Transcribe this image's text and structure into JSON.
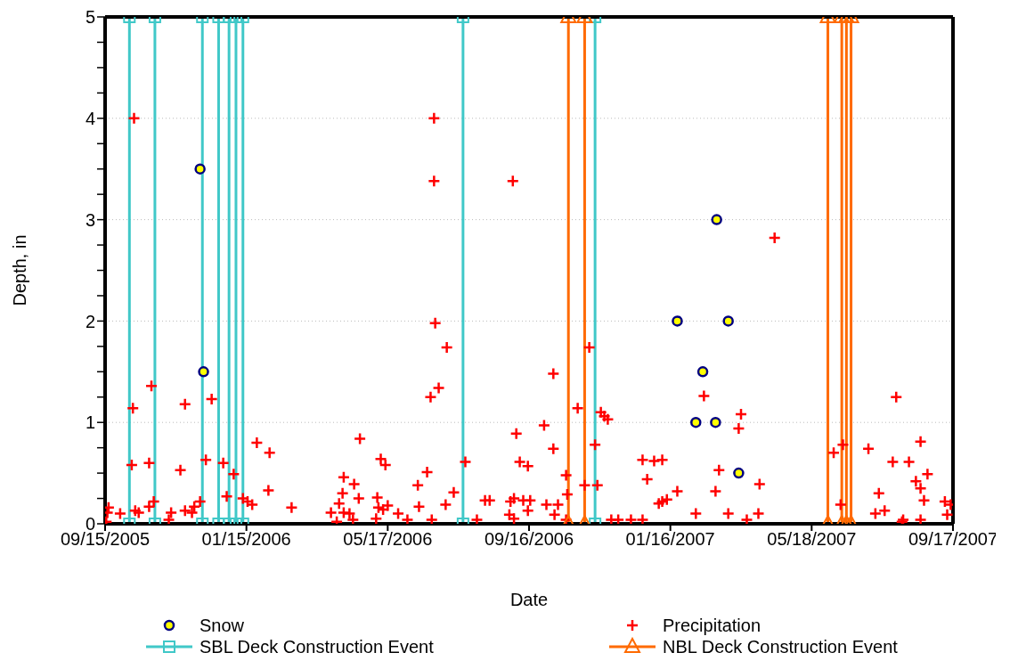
{
  "chart_data": {
    "type": "scatter",
    "xlabel": "Date",
    "ylabel": "Depth, in",
    "xlim": [
      "2005-09-15",
      "2007-09-17"
    ],
    "xticks": [
      {
        "value": "2005-09-15",
        "label": "09/15/2005"
      },
      {
        "value": "2006-01-15",
        "label": "01/15/2006"
      },
      {
        "value": "2006-05-17",
        "label": "05/17/2006"
      },
      {
        "value": "2006-09-16",
        "label": "09/16/2006"
      },
      {
        "value": "2007-01-16",
        "label": "01/16/2007"
      },
      {
        "value": "2007-05-18",
        "label": "05/18/2007"
      },
      {
        "value": "2007-09-17",
        "label": "09/17/2007"
      }
    ],
    "ylim": [
      0,
      5
    ],
    "yticks": [
      0,
      {
        "value": 0.25,
        "label": null
      },
      {
        "value": 0.5,
        "label": null
      },
      {
        "value": 0.75,
        "label": null
      },
      1,
      {
        "value": 1.25,
        "label": null
      },
      {
        "value": 1.5,
        "label": null
      },
      {
        "value": 1.75,
        "label": null
      },
      2,
      {
        "value": 2.25,
        "label": null
      },
      {
        "value": 2.5,
        "label": null
      },
      {
        "value": 2.75,
        "label": null
      },
      3,
      {
        "value": 3.25,
        "label": null
      },
      {
        "value": 3.5,
        "label": null
      },
      {
        "value": 3.75,
        "label": null
      },
      4,
      {
        "value": 4.25,
        "label": null
      },
      {
        "value": 4.5,
        "label": null
      },
      {
        "value": 4.75,
        "label": null
      },
      5
    ],
    "grid": "y",
    "legend": "bottom",
    "series": [
      {
        "name": "Snow",
        "marker": "circle",
        "color": "#ffff00",
        "x": [
          "2005-12-06",
          "2005-12-09",
          "2007-01-22",
          "2007-02-07",
          "2007-02-13",
          "2007-02-24",
          "2007-02-25",
          "2007-03-07",
          "2007-03-16"
        ],
        "values": [
          3.5,
          1.5,
          2.0,
          1.0,
          1.5,
          1.0,
          3.0,
          2.0,
          0.5
        ]
      },
      {
        "name": "Precipitation",
        "marker": "cross",
        "color": "#ff0000",
        "x": [
          "2005-09-16",
          "2005-09-17",
          "2005-09-18",
          "2005-09-28",
          "2005-10-08",
          "2005-10-09",
          "2005-10-10",
          "2005-10-11",
          "2005-10-14",
          "2005-10-23",
          "2005-10-23",
          "2005-10-25",
          "2005-10-27",
          "2005-11-09",
          "2005-11-11",
          "2005-11-19",
          "2005-11-23",
          "2005-11-23",
          "2005-11-29",
          "2005-12-01",
          "2005-12-06",
          "2005-12-11",
          "2005-12-16",
          "2005-12-26",
          "2005-12-29",
          "2006-01-04",
          "2006-01-12",
          "2006-01-16",
          "2006-01-20",
          "2006-01-24",
          "2006-02-03",
          "2006-02-04",
          "2006-02-23",
          "2006-03-29",
          "2006-04-03",
          "2006-04-05",
          "2006-04-08",
          "2006-04-09",
          "2006-04-09",
          "2006-04-14",
          "2006-04-17",
          "2006-04-18",
          "2006-04-22",
          "2006-04-23",
          "2006-05-07",
          "2006-05-08",
          "2006-05-09",
          "2006-05-11",
          "2006-05-13",
          "2006-05-15",
          "2006-05-17",
          "2006-05-26",
          "2006-06-03",
          "2006-06-12",
          "2006-06-13",
          "2006-06-20",
          "2006-06-23",
          "2006-06-24",
          "2006-06-26",
          "2006-06-26",
          "2006-06-27",
          "2006-06-30",
          "2006-07-06",
          "2006-07-07",
          "2006-07-13",
          "2006-07-23",
          "2006-08-02",
          "2006-08-09",
          "2006-08-13",
          "2006-08-30",
          "2006-08-31",
          "2006-09-02",
          "2006-09-03",
          "2006-09-03",
          "2006-09-05",
          "2006-09-08",
          "2006-09-11",
          "2006-09-15",
          "2006-09-15",
          "2006-09-17",
          "2006-09-29",
          "2006-10-01",
          "2006-10-07",
          "2006-10-07",
          "2006-10-08",
          "2006-10-11",
          "2006-10-18",
          "2006-10-18",
          "2006-10-19",
          "2006-10-28",
          "2006-11-03",
          "2006-11-07",
          "2006-11-12",
          "2006-11-14",
          "2006-11-17",
          "2006-11-20",
          "2006-11-23",
          "2006-11-26",
          "2006-12-02",
          "2006-12-13",
          "2006-12-23",
          "2006-12-23",
          "2006-12-27",
          "2007-01-02",
          "2007-01-06",
          "2007-01-09",
          "2007-01-09",
          "2007-01-13",
          "2007-01-22",
          "2007-02-07",
          "2007-02-14",
          "2007-02-24",
          "2007-02-27",
          "2007-03-07",
          "2007-03-16",
          "2007-03-18",
          "2007-03-23",
          "2007-04-02",
          "2007-04-03",
          "2007-04-16",
          "2007-06-06",
          "2007-06-12",
          "2007-06-14",
          "2007-07-06",
          "2007-07-12",
          "2007-07-15",
          "2007-07-20",
          "2007-07-27",
          "2007-07-30",
          "2007-08-04",
          "2007-08-05",
          "2007-08-10",
          "2007-08-16",
          "2007-08-20",
          "2007-08-20",
          "2007-08-20",
          "2007-08-23",
          "2007-08-26",
          "2007-09-10",
          "2007-09-12",
          "2007-09-15"
        ],
        "values": [
          0.02,
          0.11,
          0.16,
          0.1,
          0.58,
          1.14,
          4.0,
          0.13,
          0.11,
          0.6,
          0.17,
          1.36,
          0.22,
          0.04,
          0.11,
          0.53,
          1.18,
          0.13,
          0.11,
          0.17,
          0.22,
          0.63,
          1.23,
          0.6,
          0.27,
          0.49,
          0.25,
          0.22,
          0.19,
          0.8,
          0.33,
          0.7,
          0.16,
          0.11,
          0.02,
          0.2,
          0.3,
          0.46,
          0.11,
          0.1,
          0.04,
          0.39,
          0.25,
          0.84,
          0.05,
          0.26,
          0.16,
          0.64,
          0.14,
          0.58,
          0.18,
          0.1,
          0.04,
          0.38,
          0.17,
          0.51,
          1.25,
          0.04,
          4.0,
          3.38,
          1.98,
          1.34,
          0.19,
          1.74,
          0.31,
          0.61,
          0.04,
          0.23,
          0.23,
          0.09,
          0.22,
          3.38,
          0.25,
          0.05,
          0.89,
          0.61,
          0.23,
          0.57,
          0.13,
          0.23,
          0.97,
          0.19,
          1.48,
          0.74,
          0.09,
          0.19,
          0.04,
          0.48,
          0.29,
          1.14,
          0.38,
          1.74,
          0.78,
          0.38,
          1.1,
          1.06,
          1.03,
          0.04,
          0.04,
          0.04,
          0.04,
          0.63,
          0.44,
          0.62,
          0.2,
          0.63,
          0.22,
          0.24,
          0.32,
          0.1,
          1.26,
          0.32,
          0.53,
          0.1,
          0.94,
          1.08,
          0.04,
          0.1,
          0.39,
          2.82,
          0.7,
          0.19,
          0.78,
          0.74,
          0.1,
          0.3,
          0.13,
          0.61,
          1.25,
          0.02,
          0.04,
          0.61,
          0.42,
          0.35,
          0.04,
          0.81,
          0.23,
          0.49,
          0.22,
          0.09,
          0.19
        ]
      },
      {
        "name": "SBL Deck Construction Event",
        "type": "line",
        "marker": "square",
        "color": "#40c8c8",
        "x": [
          "2005-10-06",
          "2005-10-06",
          "2005-10-28",
          "2005-10-28",
          "2005-12-08",
          "2005-12-08",
          "2005-12-22",
          "2005-12-22",
          "2005-12-31",
          "2005-12-31",
          "2006-01-06",
          "2006-01-06",
          "2006-01-12",
          "2006-01-12",
          "2006-07-21",
          "2006-07-21",
          "2006-11-12",
          "2006-11-12"
        ],
        "values": [
          0,
          5,
          5,
          0,
          0,
          5,
          5,
          0,
          0,
          5,
          5,
          0,
          0,
          5,
          5,
          0,
          0,
          5
        ]
      },
      {
        "name": "NBL Deck Construction Event",
        "type": "line",
        "marker": "triangle",
        "color": "#ff6a00",
        "x": [
          "2006-10-20",
          "2006-10-20",
          "2006-11-03",
          "2006-11-03",
          "2007-06-01",
          "2007-06-01",
          "2007-06-13",
          "2007-06-13",
          "2007-06-17",
          "2007-06-17",
          "2007-06-21",
          "2007-06-21"
        ],
        "values": [
          0,
          5,
          5,
          0,
          0,
          5,
          5,
          0,
          0,
          5,
          5,
          0
        ]
      }
    ]
  }
}
